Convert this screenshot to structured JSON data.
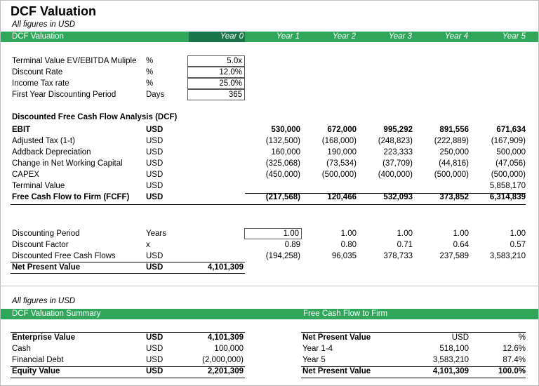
{
  "title": "DCF Valuation",
  "note": "All figures in USD",
  "header_bar": {
    "label": "DCF Valuation",
    "years": [
      "Year 0",
      "Year 1",
      "Year 2",
      "Year 3",
      "Year 4",
      "Year 5"
    ]
  },
  "assumptions": [
    {
      "label": "Terminal Value EV/EBITDA Muliple",
      "unit": "%",
      "value": "5.0x"
    },
    {
      "label": "Discount Rate",
      "unit": "%",
      "value": "12.0%"
    },
    {
      "label": "Income Tax rate",
      "unit": "%",
      "value": "25.0%"
    },
    {
      "label": "First Year Discounting Period",
      "unit": "Days",
      "value": "365"
    }
  ],
  "dcf_heading": "Discounted Free Cash Flow Analysis (DCF)",
  "dcf_rows": [
    {
      "label": "EBIT",
      "unit": "USD",
      "values": [
        "530,000",
        "672,000",
        "995,292",
        "891,556",
        "671,634"
      ]
    },
    {
      "label": "Adjusted Tax (1-t)",
      "unit": "USD",
      "values": [
        "(132,500)",
        "(168,000)",
        "(248,823)",
        "(222,889)",
        "(167,909)"
      ]
    },
    {
      "label": "Addback Depreciation",
      "unit": "USD",
      "values": [
        "160,000",
        "190,000",
        "223,333",
        "250,000",
        "500,000"
      ]
    },
    {
      "label": "Change in Net Working Capital",
      "unit": "USD",
      "values": [
        "(325,068)",
        "(73,534)",
        "(37,709)",
        "(44,816)",
        "(47,056)"
      ]
    },
    {
      "label": "CAPEX",
      "unit": "USD",
      "values": [
        "(450,000)",
        "(500,000)",
        "(400,000)",
        "(500,000)",
        "(500,000)"
      ]
    },
    {
      "label": "Terminal Value",
      "unit": "USD",
      "values": [
        "",
        "",
        "",
        "",
        "5,858,170"
      ]
    },
    {
      "label": "Free Cash Flow to Firm (FCFF)",
      "unit": "USD",
      "values": [
        "(217,568)",
        "120,466",
        "532,093",
        "373,852",
        "6,314,839"
      ]
    }
  ],
  "discount_rows": [
    {
      "label": "Discounting Period",
      "unit": "Years",
      "year0": "",
      "values": [
        "1.00",
        "1.00",
        "1.00",
        "1.00",
        "1.00"
      ]
    },
    {
      "label": "Discount Factor",
      "unit": "x",
      "year0": "",
      "values": [
        "0.89",
        "0.80",
        "0.71",
        "0.64",
        "0.57"
      ]
    },
    {
      "label": "Discounted Free Cash Flows",
      "unit": "USD",
      "year0": "",
      "values": [
        "(194,258)",
        "96,035",
        "378,733",
        "237,589",
        "3,583,210"
      ]
    },
    {
      "label": "Net Present Value",
      "unit": "USD",
      "year0": "4,101,309",
      "values": [
        "",
        "",
        "",
        "",
        ""
      ]
    }
  ],
  "note2": "All figures in USD",
  "summary_bar": {
    "left": "DCF Valuation Summary",
    "right": "Free Cash Flow to Firm"
  },
  "summary": [
    {
      "label": "Enterprise Value",
      "unit": "USD",
      "value": "4,101,309"
    },
    {
      "label": "Cash",
      "unit": "USD",
      "value": "100,000"
    },
    {
      "label": "Financial Debt",
      "unit": "USD",
      "value": "(2,000,000)"
    },
    {
      "label": "Equity Value",
      "unit": "USD",
      "value": "2,201,309"
    }
  ],
  "fcff_summary": {
    "headers": [
      "Net Present Value",
      "USD",
      "%"
    ],
    "rows": [
      {
        "label": "Year 1-4",
        "usd": "518,100",
        "pct": "12.6%"
      },
      {
        "label": "Year 5",
        "usd": "3,583,210",
        "pct": "87.4%"
      },
      {
        "label": "Net Present Value",
        "usd": "4,101,309",
        "pct": "100.0%"
      }
    ]
  }
}
